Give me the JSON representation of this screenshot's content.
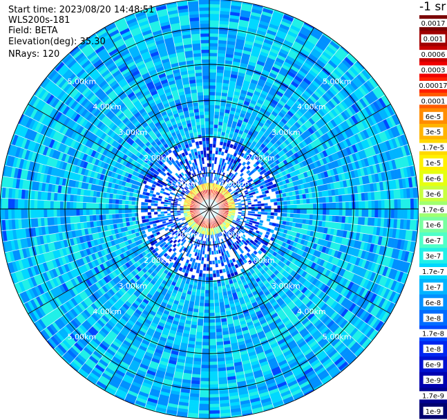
{
  "header": {
    "start_time": "Start time: 2023/08/20 14:48:51",
    "instrument": "WLS200s-181",
    "field": "Field: BETA",
    "elevation": "Elevation(deg): 35.30",
    "nrays": "NRays: 120"
  },
  "chart_data": {
    "type": "heatmap",
    "projection": "polar-ppi",
    "field": "BETA",
    "elevation_deg": 35.3,
    "n_rays": 120,
    "range_rings_km": [
      1,
      2,
      3,
      4,
      5
    ],
    "ring_labels": [
      "1.00km",
      "2.00km",
      "3.00km",
      "4.00km",
      "5.00km"
    ],
    "max_range_km": 5.8,
    "colorbar": {
      "unit_label": "-1 sr",
      "scale": "log",
      "range": [
        1e-09,
        0.0017
      ],
      "tick_labels": [
        "0.0017",
        "0.001",
        "0.0006",
        "0.0003",
        "0.00017",
        "0.0001",
        "6e-5",
        "3e-5",
        "1.7e-5",
        "1e-5",
        "6e-6",
        "3e-6",
        "1.7e-6",
        "1e-6",
        "6e-7",
        "3e-7",
        "1.7e-7",
        "1e-7",
        "6e-8",
        "3e-8",
        "1.7e-8",
        "1e-8",
        "6e-9",
        "3e-9",
        "1.7e-9",
        "1e-9"
      ],
      "colors": [
        "#7a0000",
        "#a00000",
        "#c80000",
        "#f00000",
        "#ff2000",
        "#ff5a00",
        "#ff8c00",
        "#ffb400",
        "#ffd800",
        "#fff000",
        "#e6ff10",
        "#c8ff40",
        "#a0ff70",
        "#78ffa0",
        "#50ffc8",
        "#20f0e8",
        "#00d8ff",
        "#00b4ff",
        "#0090ff",
        "#006cff",
        "#0048ff",
        "#0026f0",
        "#0010d0",
        "#0000b0",
        "#000090",
        "#000070"
      ]
    },
    "structure": {
      "core_radius_km": 0.3,
      "near_ring_km": 0.45,
      "clutter_extent_km": 2.0,
      "far_background": "light blue noise"
    }
  }
}
